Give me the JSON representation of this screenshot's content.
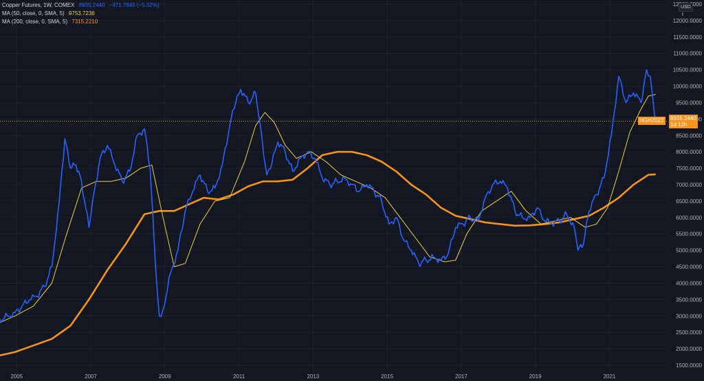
{
  "legend": {
    "main_label": "Copper Futures, 1W, COMEX",
    "main_price": "8935.2440",
    "main_change": "−471.7845 (−5.02%)",
    "ma50_label": "MA (50, close, 0, SMA, 5)",
    "ma50_value": "9753.7236",
    "ma200_label": "MA (200, close, 0, SMA, 5)",
    "ma200_value": "7315.2210"
  },
  "price_scale": {
    "currency": "USD",
    "unit_toggle": "t",
    "symbol_tag": "HGH2022",
    "last_price": "8935.2440",
    "countdown": "1d 12h"
  },
  "colors": {
    "background": "#131722",
    "price_line": "#2962ff",
    "ma50": "#f0d040",
    "ma200": "#f7931a",
    "grid": "#1e2230",
    "axis_text": "#b2b5be"
  },
  "chart_data": {
    "type": "line",
    "title": "Copper Futures, 1W, COMEX",
    "xlabel": "",
    "ylabel": "",
    "xlim": [
      2004.6,
      2022.6
    ],
    "ylim": [
      1500,
      12500
    ],
    "grid": true,
    "legend_position": "top-left",
    "x_ticks": [
      "2005",
      "2007",
      "2009",
      "2011",
      "2013",
      "2015",
      "2017",
      "2019",
      "2021"
    ],
    "y_ticks": [
      "1500.0000",
      "2000.0000",
      "2500.0000",
      "3000.0000",
      "3500.0000",
      "4000.0000",
      "4500.0000",
      "5000.0000",
      "5500.0000",
      "6000.0000",
      "6500.0000",
      "7000.0000",
      "7500.0000",
      "8000.0000",
      "8500.0000",
      "9000.0000",
      "9500.0000",
      "10000.0000",
      "10500.0000",
      "11000.0000",
      "11500.0000",
      "12000.0000",
      "12500.0000"
    ],
    "last_value_line": 8935.244,
    "series": [
      {
        "name": "Copper Futures",
        "x": [
          2004.6,
          2004.8,
          2005.0,
          2005.2,
          2005.4,
          2005.6,
          2005.8,
          2006.0,
          2006.2,
          2006.35,
          2006.5,
          2006.65,
          2006.8,
          2007.0,
          2007.1,
          2007.3,
          2007.5,
          2007.7,
          2007.9,
          2008.1,
          2008.3,
          2008.5,
          2008.65,
          2008.8,
          2008.9,
          2009.0,
          2009.2,
          2009.4,
          2009.6,
          2009.8,
          2010.0,
          2010.2,
          2010.4,
          2010.6,
          2010.8,
          2011.0,
          2011.1,
          2011.3,
          2011.5,
          2011.6,
          2011.8,
          2011.9,
          2012.1,
          2012.3,
          2012.5,
          2012.7,
          2012.9,
          2013.1,
          2013.3,
          2013.5,
          2013.7,
          2013.9,
          2014.1,
          2014.3,
          2014.5,
          2014.7,
          2014.9,
          2015.1,
          2015.3,
          2015.5,
          2015.7,
          2015.9,
          2016.1,
          2016.3,
          2016.5,
          2016.7,
          2016.9,
          2017.1,
          2017.3,
          2017.5,
          2017.7,
          2017.9,
          2018.1,
          2018.3,
          2018.5,
          2018.7,
          2018.9,
          2019.1,
          2019.3,
          2019.5,
          2019.7,
          2019.9,
          2020.1,
          2020.2,
          2020.35,
          2020.5,
          2020.7,
          2020.9,
          2021.1,
          2021.3,
          2021.5,
          2021.7,
          2021.9,
          2022.05,
          2022.15,
          2022.3
        ],
        "y": [
          2900,
          3000,
          3100,
          3300,
          3500,
          3600,
          3900,
          4500,
          6500,
          8400,
          7500,
          7600,
          7100,
          5700,
          6500,
          7800,
          8200,
          7600,
          7100,
          7400,
          8500,
          8700,
          7500,
          4500,
          3000,
          3200,
          4300,
          5000,
          6200,
          6800,
          7300,
          6800,
          6900,
          7600,
          8800,
          9700,
          9900,
          9500,
          9800,
          9000,
          7300,
          7500,
          8300,
          8000,
          7400,
          7800,
          8000,
          7800,
          7200,
          7000,
          7100,
          7200,
          7000,
          6800,
          7000,
          6800,
          6500,
          5800,
          6000,
          5300,
          5000,
          4600,
          4700,
          4800,
          4700,
          4900,
          5700,
          5800,
          6000,
          5900,
          6600,
          7000,
          7100,
          6900,
          6200,
          6000,
          6000,
          6300,
          5900,
          5800,
          5900,
          6100,
          5700,
          5000,
          5200,
          6200,
          6700,
          7200,
          8500,
          10300,
          9500,
          9800,
          9500,
          10500,
          10300,
          8935
        ]
      },
      {
        "name": "MA (50, close, 0, SMA, 5)",
        "x": [
          2004.6,
          2005.0,
          2005.5,
          2006.0,
          2006.4,
          2006.8,
          2007.2,
          2007.6,
          2008.0,
          2008.4,
          2008.7,
          2009.0,
          2009.3,
          2009.6,
          2010.0,
          2010.4,
          2010.8,
          2011.2,
          2011.5,
          2011.75,
          2012.0,
          2012.3,
          2012.6,
          2013.0,
          2013.4,
          2013.8,
          2014.2,
          2014.6,
          2015.0,
          2015.4,
          2015.8,
          2016.2,
          2016.6,
          2016.9,
          2017.2,
          2017.6,
          2018.0,
          2018.4,
          2018.8,
          2019.2,
          2019.6,
          2020.0,
          2020.4,
          2020.7,
          2021.0,
          2021.3,
          2021.6,
          2021.9,
          2022.1,
          2022.3
        ],
        "y": [
          2800,
          3000,
          3300,
          4000,
          5500,
          6900,
          7100,
          7100,
          7200,
          7500,
          7600,
          6000,
          4500,
          4600,
          5800,
          6500,
          6600,
          7700,
          8800,
          9200,
          8900,
          8200,
          7800,
          8000,
          7700,
          7300,
          7100,
          6900,
          6600,
          6000,
          5400,
          4800,
          4650,
          4700,
          5500,
          6200,
          6500,
          6800,
          6200,
          5800,
          5900,
          6000,
          5700,
          5800,
          6300,
          7400,
          8600,
          9300,
          9700,
          9750
        ]
      },
      {
        "name": "MA (200, close, 0, SMA, 5)",
        "x": [
          2004.6,
          2005.0,
          2005.5,
          2006.0,
          2006.5,
          2007.0,
          2007.5,
          2008.0,
          2008.5,
          2008.9,
          2009.3,
          2009.7,
          2010.1,
          2010.5,
          2010.9,
          2011.3,
          2011.7,
          2012.1,
          2012.5,
          2012.9,
          2013.3,
          2013.7,
          2014.1,
          2014.5,
          2014.9,
          2015.3,
          2015.7,
          2016.1,
          2016.5,
          2016.9,
          2017.3,
          2017.7,
          2018.1,
          2018.5,
          2018.9,
          2019.3,
          2019.7,
          2020.1,
          2020.5,
          2020.9,
          2021.3,
          2021.7,
          2022.1,
          2022.3
        ],
        "y": [
          1800,
          1900,
          2100,
          2300,
          2700,
          3500,
          4400,
          5200,
          6100,
          6200,
          6200,
          6400,
          6600,
          6550,
          6700,
          6950,
          7100,
          7100,
          7150,
          7500,
          7900,
          8000,
          8000,
          7900,
          7700,
          7400,
          7000,
          6700,
          6300,
          6050,
          5950,
          5850,
          5800,
          5750,
          5760,
          5800,
          5850,
          5950,
          6050,
          6300,
          6600,
          7000,
          7300,
          7315
        ]
      }
    ]
  }
}
